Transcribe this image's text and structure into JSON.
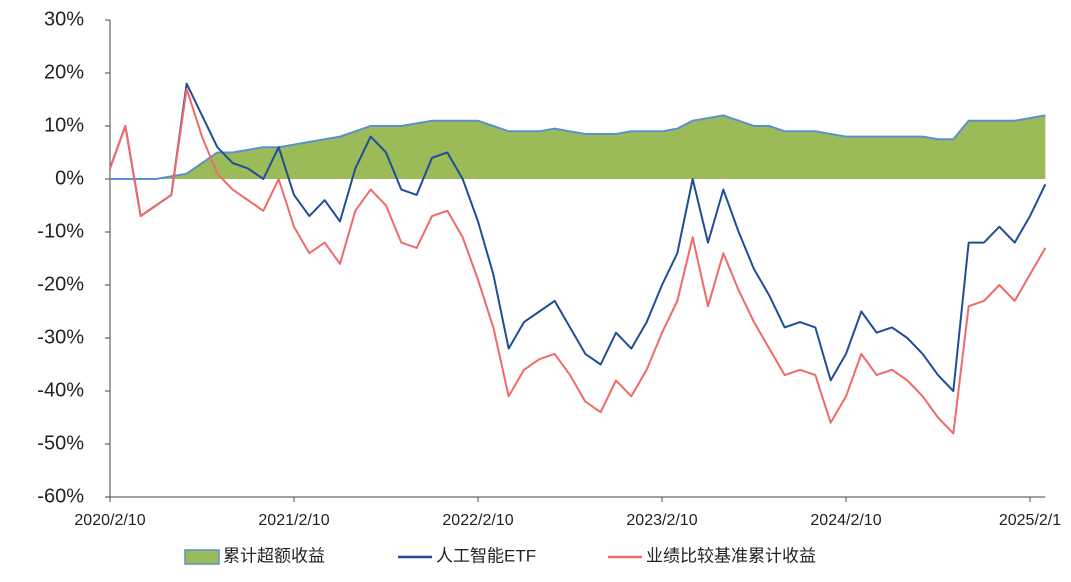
{
  "chart_data": {
    "type": "line",
    "categories": [
      "2020/2/10",
      null,
      null,
      null,
      null,
      null,
      null,
      null,
      null,
      null,
      null,
      null,
      "2021/2/10",
      null,
      null,
      null,
      null,
      null,
      null,
      null,
      null,
      null,
      null,
      null,
      "2022/2/10",
      null,
      null,
      null,
      null,
      null,
      null,
      null,
      null,
      null,
      null,
      null,
      "2023/2/10",
      null,
      null,
      null,
      null,
      null,
      null,
      null,
      null,
      null,
      null,
      null,
      "2024/2/10",
      null,
      null,
      null,
      null,
      null,
      null,
      null,
      null,
      null,
      null,
      null,
      "2025/2/1",
      null
    ],
    "series": [
      {
        "name": "累计超额收益",
        "type": "area",
        "color": "#9bbb59",
        "edge_color": "#5b8fd0",
        "values": [
          0,
          0,
          0,
          0,
          0.5,
          1,
          3,
          5,
          5,
          5.5,
          6,
          6,
          6.5,
          7,
          7.5,
          8,
          9,
          10,
          10,
          10,
          10.5,
          11,
          11,
          11,
          11,
          10,
          9,
          9,
          9,
          9.5,
          9,
          8.5,
          8.5,
          8.5,
          9,
          9,
          9,
          9.5,
          11,
          11.5,
          12,
          11,
          10,
          10,
          9,
          9,
          9,
          8.5,
          8,
          8,
          8,
          8,
          8,
          8,
          7.5,
          7.5,
          11,
          11,
          11,
          11,
          11.5,
          12
        ]
      },
      {
        "name": "人工智能ETF",
        "type": "line",
        "color": "#1f4e99",
        "values": [
          2,
          10,
          -7,
          -5,
          -3,
          18,
          12,
          6,
          3,
          2,
          0,
          6,
          -3,
          -7,
          -4,
          -8,
          2,
          8,
          5,
          -2,
          -3,
          4,
          5,
          0,
          -8,
          -18,
          -32,
          -27,
          -25,
          -23,
          -28,
          -33,
          -35,
          -29,
          -32,
          -27,
          -20,
          -14,
          0,
          -12,
          -2,
          -10,
          -17,
          -22,
          -28,
          -27,
          -28,
          -38,
          -33,
          -25,
          -29,
          -28,
          -30,
          -33,
          -37,
          -40,
          -12,
          -12,
          -9,
          -12,
          -7,
          -1
        ]
      },
      {
        "name": "业绩比较基准累计收益",
        "type": "line",
        "color": "#f06a6a",
        "values": [
          2,
          10,
          -7,
          -5,
          -3,
          17,
          8,
          1,
          -2,
          -4,
          -6,
          0,
          -9,
          -14,
          -12,
          -16,
          -6,
          -2,
          -5,
          -12,
          -13,
          -7,
          -6,
          -11,
          -19,
          -28,
          -41,
          -36,
          -34,
          -33,
          -37,
          -42,
          -44,
          -38,
          -41,
          -36,
          -29,
          -23,
          -11,
          -24,
          -14,
          -21,
          -27,
          -32,
          -37,
          -36,
          -37,
          -46,
          -41,
          -33,
          -37,
          -36,
          -38,
          -41,
          -45,
          -48,
          -24,
          -23,
          -20,
          -23,
          -18,
          -13
        ]
      }
    ],
    "ylim": [
      -60,
      30
    ],
    "yticks": [
      {
        "value": -60,
        "label": "-60%"
      },
      {
        "value": -50,
        "label": "-50%"
      },
      {
        "value": -40,
        "label": "-40%"
      },
      {
        "value": -30,
        "label": "-30%"
      },
      {
        "value": -20,
        "label": "-20%"
      },
      {
        "value": -10,
        "label": "-10%"
      },
      {
        "value": 0,
        "label": "0%"
      },
      {
        "value": 10,
        "label": "10%"
      },
      {
        "value": 20,
        "label": "20%"
      },
      {
        "value": 30,
        "label": "30%"
      }
    ],
    "legend": "bottom"
  }
}
